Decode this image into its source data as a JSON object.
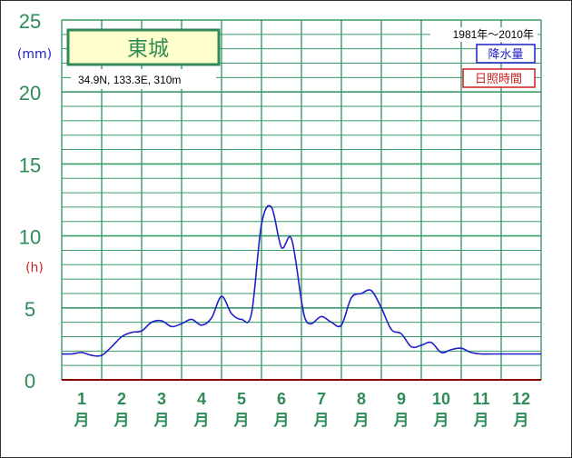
{
  "station": {
    "name": "東城",
    "coords": "34.9N,  133.3E,  310m"
  },
  "period": "1981年〜2010年",
  "legend": {
    "precip": "降水量",
    "sunshine": "日照時間"
  },
  "units": {
    "precip": "(mm)",
    "sunshine": "(h)"
  },
  "colors": {
    "grid": "#3a9a6a",
    "axis_text": "#2e8b57",
    "precip": "#1f1fc8",
    "sunshine": "#cc1f1f",
    "title_bg": "#ffffcc"
  },
  "chart_data": {
    "type": "line",
    "title": "",
    "xlabel": "",
    "ylabel": "",
    "ylim": [
      0,
      25
    ],
    "yticks": [
      0,
      5,
      10,
      15,
      20,
      25
    ],
    "month_labels": [
      "1",
      "2",
      "3",
      "4",
      "5",
      "6",
      "7",
      "8",
      "9",
      "10",
      "11",
      "12"
    ],
    "month_suffix": "月",
    "grid": true,
    "legend_position": "top-right",
    "series": [
      {
        "name": "降水量",
        "x": [
          0.0,
          0.25,
          0.5,
          0.75,
          1.0,
          1.25,
          1.5,
          1.75,
          2.0,
          2.25,
          2.5,
          2.75,
          3.0,
          3.25,
          3.5,
          3.75,
          4.0,
          4.25,
          4.5,
          4.75,
          5.0,
          5.25,
          5.5,
          5.75,
          6.0,
          6.1,
          6.25,
          6.5,
          6.75,
          7.0,
          7.25,
          7.5,
          7.75,
          8.0,
          8.25,
          8.5,
          8.75,
          9.0,
          9.25,
          9.5,
          9.75,
          10.0,
          10.25,
          10.5,
          10.75,
          11.0,
          11.25,
          11.5,
          11.75,
          12.0
        ],
        "values": [
          1.8,
          1.8,
          1.9,
          1.7,
          1.7,
          2.3,
          3.0,
          3.3,
          3.4,
          4.0,
          4.1,
          3.7,
          3.9,
          4.2,
          3.8,
          4.3,
          5.8,
          4.6,
          4.2,
          4.6,
          10.8,
          12.0,
          9.2,
          9.8,
          5.5,
          4.2,
          3.9,
          4.4,
          4.0,
          3.8,
          5.7,
          6.0,
          6.2,
          5.0,
          3.5,
          3.2,
          2.3,
          2.4,
          2.6,
          1.9,
          2.1,
          2.2,
          1.9,
          1.8,
          1.8,
          1.8,
          1.8,
          1.8,
          1.8,
          1.8
        ]
      }
    ]
  }
}
